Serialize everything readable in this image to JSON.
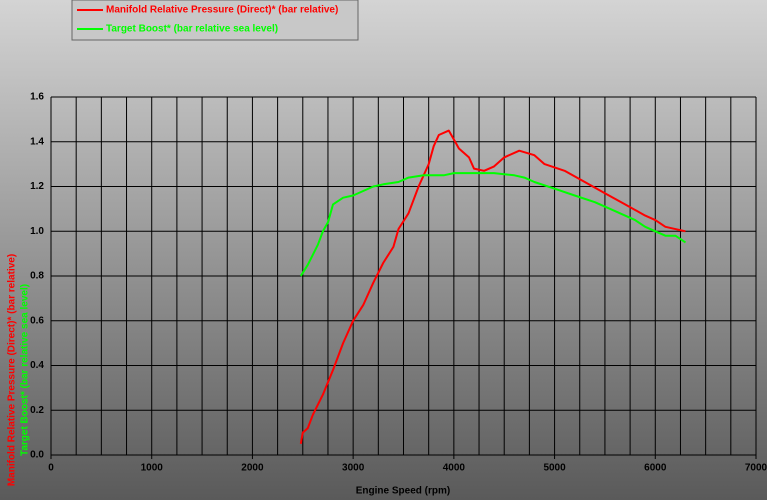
{
  "chart_data": {
    "type": "line",
    "xlabel": "Engine Speed (rpm)",
    "ylabel": [
      "Manifold Relative Pressure (Direct)* (bar relative)",
      "Target Boost* (bar relative sea level)"
    ],
    "xlim": [
      0,
      7000
    ],
    "ylim": [
      0,
      1.6
    ],
    "xticks": [
      0,
      1000,
      2000,
      3000,
      4000,
      5000,
      6000,
      7000
    ],
    "x_gridlines": [
      0,
      250,
      500,
      750,
      1000,
      1250,
      1500,
      1750,
      2000,
      2250,
      2500,
      2750,
      3000,
      3250,
      3500,
      3750,
      4000,
      4250,
      4500,
      4750,
      5000,
      5250,
      5500,
      5750,
      6000,
      6250,
      6500,
      6750,
      7000
    ],
    "yticks": [
      {
        "value": 0,
        "label": "0.0"
      },
      {
        "value": 0.2,
        "label": "0.2"
      },
      {
        "value": 0.4,
        "label": "0.4"
      },
      {
        "value": 0.6,
        "label": "0.6"
      },
      {
        "value": 0.8,
        "label": "0.8"
      },
      {
        "value": 1,
        "label": "1.0"
      },
      {
        "value": 1.2,
        "label": "1.2"
      },
      {
        "value": 1.4,
        "label": "1.4"
      },
      {
        "value": 1.6,
        "label": "1.6"
      }
    ],
    "grid": true,
    "legend": "top-left",
    "series": [
      {
        "name": "Manifold Relative Pressure (Direct)* (bar relative)",
        "color": "#ff0000",
        "x": [
          2480,
          2500,
          2550,
          2600,
          2700,
          2800,
          2900,
          3000,
          3100,
          3200,
          3300,
          3400,
          3450,
          3550,
          3650,
          3750,
          3800,
          3850,
          3950,
          4000,
          4050,
          4150,
          4200,
          4300,
          4400,
          4500,
          4650,
          4800,
          4900,
          5100,
          5300,
          5500,
          5700,
          5900,
          6000,
          6100,
          6300
        ],
        "values": [
          0.05,
          0.1,
          0.12,
          0.18,
          0.27,
          0.38,
          0.5,
          0.6,
          0.67,
          0.77,
          0.86,
          0.93,
          1.01,
          1.08,
          1.2,
          1.3,
          1.38,
          1.43,
          1.45,
          1.41,
          1.37,
          1.33,
          1.28,
          1.27,
          1.29,
          1.33,
          1.36,
          1.34,
          1.3,
          1.27,
          1.22,
          1.17,
          1.12,
          1.07,
          1.05,
          1.02,
          1.0
        ]
      },
      {
        "name": "Target Boost* (bar relative sea level)",
        "color": "#00ff00",
        "x": [
          2480,
          2550,
          2650,
          2700,
          2750,
          2800,
          2900,
          3000,
          3100,
          3200,
          3300,
          3450,
          3550,
          3700,
          3900,
          4000,
          4200,
          4400,
          4600,
          4700,
          4800,
          5000,
          5200,
          5400,
          5600,
          5800,
          5900,
          6000,
          6100,
          6200,
          6300
        ],
        "values": [
          0.8,
          0.85,
          0.94,
          1.0,
          1.04,
          1.12,
          1.15,
          1.16,
          1.18,
          1.2,
          1.21,
          1.22,
          1.24,
          1.25,
          1.25,
          1.26,
          1.26,
          1.26,
          1.25,
          1.24,
          1.22,
          1.19,
          1.16,
          1.13,
          1.09,
          1.05,
          1.02,
          1.0,
          0.98,
          0.98,
          0.95
        ]
      }
    ]
  }
}
